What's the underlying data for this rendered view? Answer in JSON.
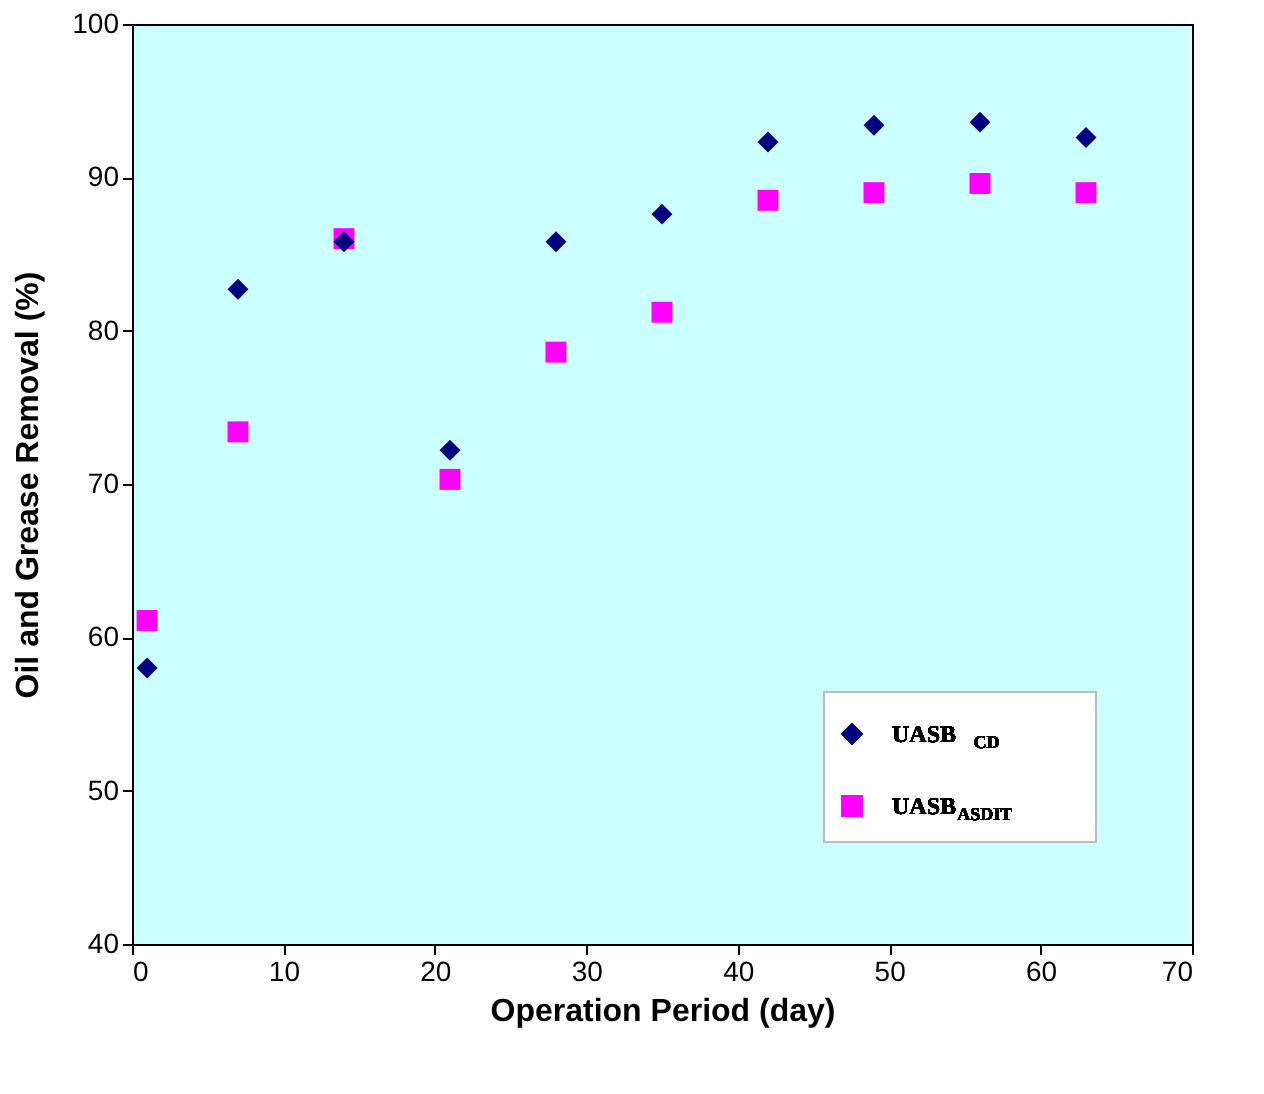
{
  "chart_data": {
    "type": "scatter",
    "xlabel": "Operation Period (day)",
    "ylabel": "Oil and Grease Removal  (%)",
    "xlim": [
      0,
      70
    ],
    "xticks": [
      0,
      10,
      20,
      30,
      40,
      50,
      60,
      70
    ],
    "ylim": [
      40,
      100
    ],
    "yticks": [
      40,
      50,
      60,
      70,
      80,
      90,
      100
    ],
    "x": [
      1,
      7,
      14,
      21,
      28,
      35,
      42,
      49,
      56,
      63
    ],
    "series": [
      {
        "name": "UASB $_{CD}$",
        "color": "#000080",
        "marker": "diamond",
        "values": [
          58,
          82.7,
          85.8,
          72.2,
          85.8,
          87.6,
          92.3,
          93.4,
          93.6,
          92.6
        ]
      },
      {
        "name": "UASB$_{ASDIT}$",
        "color": "#ff00ff",
        "marker": "square",
        "values": [
          61.1,
          73.4,
          86,
          70.3,
          78.6,
          81.2,
          88.5,
          89,
          89.6,
          89
        ]
      }
    ],
    "grid": false,
    "legend": "bottom right"
  }
}
